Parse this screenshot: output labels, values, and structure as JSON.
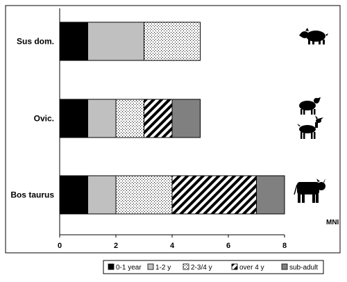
{
  "chart_data": {
    "type": "bar",
    "orientation": "horizontal",
    "stacked": true,
    "categories": [
      "Sus dom.",
      "Ovic.",
      "Bos taurus"
    ],
    "series": [
      {
        "name": "0-1 year",
        "values": [
          1,
          1,
          1
        ],
        "color": "#000000",
        "pattern": "solid"
      },
      {
        "name": "1-2 y",
        "values": [
          2,
          1,
          1
        ],
        "color": "#c0c0c0",
        "pattern": "solid"
      },
      {
        "name": "2-3/4 y",
        "values": [
          2,
          1,
          2
        ],
        "color": "#ffffff",
        "pattern": "dots"
      },
      {
        "name": "over 4 y",
        "values": [
          0,
          1,
          3
        ],
        "color": "#000000",
        "pattern": "diagonal-stripes"
      },
      {
        "name": "sub-adult",
        "values": [
          0,
          1,
          1
        ],
        "color": "#808080",
        "pattern": "solid"
      }
    ],
    "xlim": [
      0,
      8
    ],
    "xticks": [
      0,
      2,
      4,
      6,
      8
    ],
    "xlabel": "MNI",
    "legend": "bottom",
    "grid": false,
    "icons": [
      "pig-icon",
      "sheep-icon",
      "goat-icon",
      "cow-icon"
    ]
  }
}
